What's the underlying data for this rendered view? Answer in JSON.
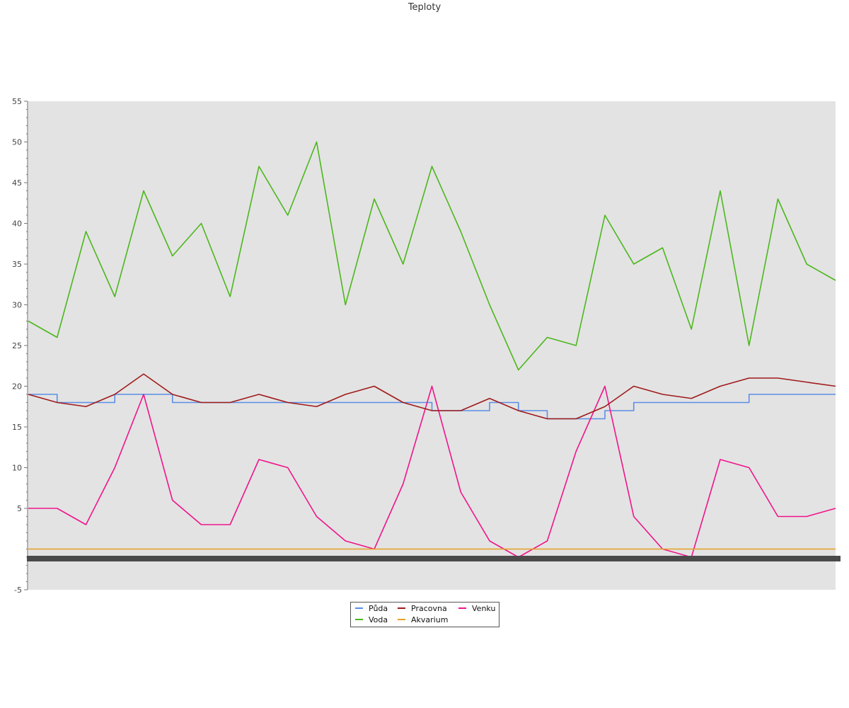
{
  "chart_data": {
    "type": "line",
    "title": "Teploty",
    "xlabel": "",
    "ylabel": "",
    "ylim": [
      -5,
      55
    ],
    "yticks": [
      -5,
      5,
      10,
      15,
      20,
      25,
      30,
      35,
      40,
      45,
      50,
      55
    ],
    "grid": false,
    "legend_position": "bottom-center",
    "x": [
      0,
      0.25,
      0.5,
      0.75,
      1,
      1.25,
      1.5,
      1.75,
      2,
      2.25,
      2.5,
      2.75,
      3,
      3.25,
      3.5,
      3.75,
      4,
      4.25,
      4.5,
      4.75,
      5,
      5.25,
      5.5,
      5.75,
      6,
      6.25,
      6.5,
      6.75,
      7
    ],
    "series": [
      {
        "name": "Půda",
        "color": "#5b8ee6",
        "step": true,
        "values": [
          19,
          18,
          18,
          19,
          19,
          18,
          18,
          18,
          18,
          18,
          18,
          18,
          18,
          18,
          17,
          17,
          18,
          17,
          16,
          16,
          17,
          18,
          18,
          18,
          18,
          19,
          19,
          19,
          19
        ]
      },
      {
        "name": "Voda",
        "color": "#4cb71c",
        "values": [
          28,
          26,
          39,
          31,
          44,
          36,
          40,
          31,
          47,
          41,
          50,
          30,
          43,
          35,
          47,
          39,
          30,
          22,
          26,
          25,
          41,
          35,
          37,
          27,
          44,
          25,
          43,
          35,
          33
        ]
      },
      {
        "name": "Venku",
        "color": "#f0148c",
        "values": [
          5,
          5,
          3,
          10,
          19,
          6,
          3,
          3,
          11,
          10,
          4,
          1,
          0,
          8,
          20,
          7,
          1,
          -1,
          1,
          12,
          20,
          4,
          0,
          -1,
          11,
          10,
          4,
          4,
          5
        ]
      },
      {
        "name": "Pracovna",
        "color": "#a01a1a",
        "values": [
          19,
          18,
          17.5,
          19,
          21.5,
          19,
          18,
          18,
          19,
          18,
          17.5,
          19,
          20,
          18,
          17,
          17,
          18.5,
          17,
          16,
          16,
          17.5,
          20,
          19,
          18.5,
          20,
          21,
          21,
          20.5,
          20
        ]
      },
      {
        "name": "Akvarium",
        "color": "#e8a020",
        "values": [
          0,
          0,
          0,
          0,
          0,
          0,
          0,
          0,
          0,
          0,
          0,
          0,
          0,
          0,
          0,
          0,
          0,
          0,
          0,
          0,
          0,
          0,
          0,
          0,
          0,
          0,
          0,
          0,
          0
        ]
      }
    ]
  },
  "legend": {
    "items": [
      {
        "label": "Půda",
        "color": "#5b8ee6"
      },
      {
        "label": "Pracovna",
        "color": "#a01a1a"
      },
      {
        "label": "Venku",
        "color": "#f0148c"
      },
      {
        "label": "Voda",
        "color": "#4cb71c"
      },
      {
        "label": "Akvarium",
        "color": "#e8a020"
      }
    ]
  },
  "colors": {
    "plot_background": "#e3e3e3",
    "x_axis_band": "#4a4a4a"
  }
}
